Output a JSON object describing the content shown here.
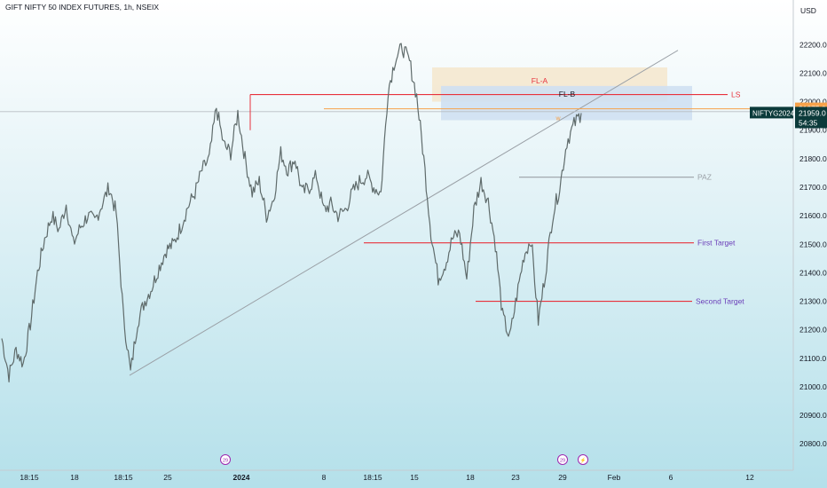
{
  "header": {
    "symbol_title": "GIFT NIFTY 50 INDEX FUTURES, 1h, NSEIX"
  },
  "currency": "USD",
  "colors": {
    "candles": "#5f6b6b",
    "level_red": "#e8323c",
    "level_gray": "#9aa0a6",
    "fl_a_zone": "#f5e6cc",
    "fl_b_zone": "#cfe0f2",
    "orange_level": "#f7a24a",
    "price_tag": "#0b3a3a",
    "label_purple": "#6a3db8",
    "trendline": "#9aa0a6"
  },
  "chart_data": {
    "type": "line",
    "ylim": [
      20770,
      22290
    ],
    "yticks": [
      20800,
      20900,
      21000,
      21100,
      21200,
      21300,
      21400,
      21500,
      21600,
      21700,
      21800,
      21900,
      22000,
      22100,
      22200
    ],
    "ytick_labels": [
      "20800.0",
      "20900.0",
      "21000.0",
      "21100.0",
      "21200.0",
      "21300.0",
      "21400.0",
      "21500.0",
      "21600.0",
      "21700.0",
      "21800.0",
      "21900.0",
      "22000.0",
      "22100.0",
      "22200.0"
    ],
    "xtick_labels": [
      "18:15",
      "18",
      "18:15",
      "25",
      "2024",
      "8",
      "18:15",
      "15",
      "18",
      "23",
      "29",
      "Feb",
      "6",
      "12"
    ],
    "levels": [
      {
        "name": "LS",
        "price": 22025
      },
      {
        "name": "First Target",
        "price": 21505
      },
      {
        "name": "Second Target",
        "price": 21300
      },
      {
        "name": "PAZ",
        "price": 21735
      }
    ],
    "zones": [
      {
        "name": "FL-A",
        "low": 22000,
        "high": 22120
      },
      {
        "name": "FL-B",
        "low": 21935,
        "high": 22055
      }
    ],
    "orange_level": 21975,
    "last_price": {
      "symbol": "NIFTYG2024",
      "price": "21959.0",
      "countdown": "54:35",
      "orange_tag": "21975.0"
    },
    "price_path": [
      21170,
      21040,
      21130,
      21080,
      21220,
      21400,
      21520,
      21600,
      21550,
      21640,
      21500,
      21560,
      21600,
      21580,
      21640,
      21700,
      21610,
      21250,
      21050,
      21230,
      21300,
      21350,
      21420,
      21480,
      21500,
      21560,
      21630,
      21680,
      21760,
      21800,
      21980,
      21850,
      21820,
      21960,
      21800,
      21680,
      21720,
      21600,
      21660,
      21820,
      21760,
      21800,
      21680,
      21700,
      21740,
      21620,
      21640,
      21600,
      21620,
      21680,
      21720,
      21740,
      21700,
      21680,
      22040,
      22150,
      22190,
      22140,
      22020,
      21800,
      21540,
      21380,
      21430,
      21520,
      21540,
      21380,
      21620,
      21720,
      21650,
      21500,
      21250,
      21170,
      21320,
      21460,
      21520,
      21230,
      21400,
      21600,
      21700,
      21860,
      21920,
      21960
    ]
  },
  "events": {
    "icon_positions_hint": [
      "29",
      "29",
      "lightning"
    ]
  }
}
